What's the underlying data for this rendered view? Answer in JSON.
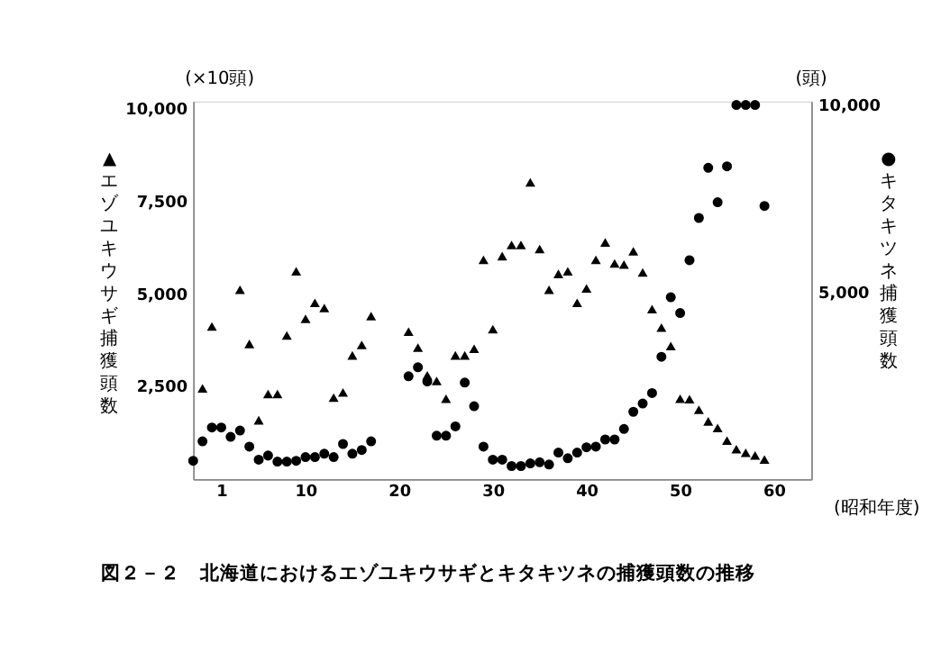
{
  "chart_data": {
    "type": "scatter",
    "title": "図２－２　北海道におけるエゾユキウサギとキタキツネの捕獲頭数の推移",
    "xlabel": "(昭和年度)",
    "ylabel": "▲エゾユキウサギ捕獲頭数",
    "y2label": "●キタキツネ捕獲頭数",
    "annotations": [
      "(×10頭)",
      "(頭)"
    ],
    "xlim": [
      -2,
      64
    ],
    "xticks": [
      1,
      10,
      20,
      30,
      40,
      50,
      60
    ],
    "ylim": [
      0,
      10200
    ],
    "yticks": [
      {
        "value": 2500,
        "label": "2,500"
      },
      {
        "value": 5000,
        "label": "5,000"
      },
      {
        "value": 7500,
        "label": "7,500"
      },
      {
        "value": 10000,
        "label": "10,000"
      }
    ],
    "y2lim": [
      0,
      10100
    ],
    "y2ticks": [
      {
        "value": 5000,
        "label": "5,000"
      },
      {
        "value": 10000,
        "label": "10,000"
      }
    ],
    "grid": false,
    "series": [
      {
        "color": "#000000",
        "marker": "triangle",
        "axis": "y",
        "x": [
          -1,
          0,
          3,
          4,
          5,
          6,
          7,
          8,
          9,
          10,
          11,
          12,
          13,
          14,
          15,
          16,
          17,
          21,
          22,
          23,
          24,
          25,
          26,
          27,
          28,
          29,
          30,
          31,
          32,
          33,
          34,
          35,
          36,
          37,
          38,
          39,
          40,
          41,
          42,
          43,
          44,
          45,
          46,
          47,
          48,
          49,
          50,
          51,
          52,
          53,
          54,
          55,
          56,
          57,
          58,
          59
        ],
        "values": [
          2450,
          4120,
          5110,
          3650,
          1590,
          2300,
          2300,
          3880,
          5610,
          4330,
          4760,
          4620,
          2200,
          2340,
          3340,
          3620,
          4400,
          3980,
          3550,
          2800,
          2650,
          2170,
          3340,
          3340,
          3520,
          5920,
          4050,
          6020,
          6320,
          6320,
          8010,
          6210,
          5110,
          5540,
          5610,
          4760,
          5150,
          5920,
          6390,
          5820,
          5790,
          6150,
          5580,
          4590,
          4090,
          3590,
          2170,
          2160,
          1870,
          1560,
          1380,
          1040,
          810,
          710,
          640,
          530
        ]
      },
      {
        "color": "#000000",
        "marker": "circle",
        "axis": "y2",
        "x": [
          -2,
          -1,
          0,
          1,
          2,
          3,
          4,
          5,
          6,
          7,
          8,
          9,
          10,
          11,
          12,
          13,
          14,
          15,
          16,
          17,
          21,
          22,
          23,
          24,
          25,
          26,
          27,
          28,
          29,
          30,
          31,
          32,
          33,
          34,
          35,
          36,
          37,
          38,
          39,
          40,
          41,
          42,
          43,
          44,
          45,
          46,
          47,
          48,
          49,
          50,
          51,
          52,
          53,
          54,
          55,
          56,
          57,
          58,
          59
        ],
        "values": [
          490,
          1010,
          1380,
          1380,
          1130,
          1300,
          870,
          520,
          630,
          470,
          470,
          490,
          590,
          590,
          680,
          590,
          940,
          680,
          780,
          1010,
          2750,
          2990,
          2610,
          1160,
          1160,
          1410,
          2580,
          1950,
          870,
          520,
          520,
          350,
          350,
          420,
          450,
          390,
          710,
          560,
          710,
          850,
          870,
          1060,
          1060,
          1340,
          1800,
          2020,
          2300,
          3270,
          4860,
          4440,
          5850,
          6980,
          8320,
          7400,
          8360,
          10000,
          10000,
          10000,
          7300
        ]
      }
    ]
  }
}
